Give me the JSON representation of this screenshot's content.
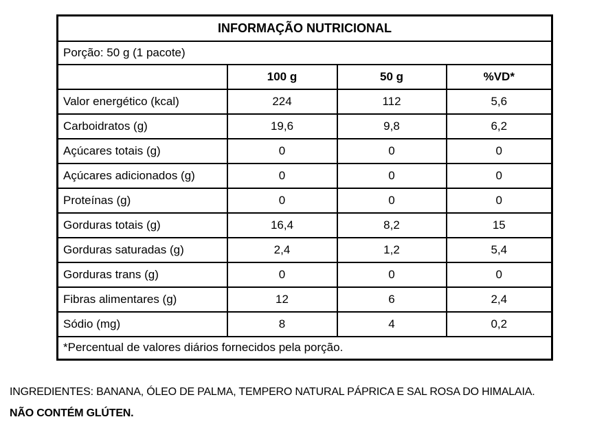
{
  "table": {
    "title": "INFORMAÇÃO NUTRICIONAL",
    "portion": "Porção: 50 g (1 pacote)",
    "columns": [
      "",
      "100 g",
      "50 g",
      "%VD*"
    ],
    "rows": [
      {
        "label": "Valor energético (kcal)",
        "values": [
          "224",
          "112",
          "5,6"
        ]
      },
      {
        "label": "Carboidratos (g)",
        "values": [
          "19,6",
          "9,8",
          "6,2"
        ]
      },
      {
        "label": "Açúcares totais (g)",
        "values": [
          "0",
          "0",
          "0"
        ]
      },
      {
        "label": "Açúcares adicionados (g)",
        "values": [
          "0",
          "0",
          "0"
        ]
      },
      {
        "label": "Proteínas (g)",
        "values": [
          "0",
          "0",
          "0"
        ]
      },
      {
        "label": "Gorduras totais (g)",
        "values": [
          "16,4",
          "8,2",
          "15"
        ]
      },
      {
        "label": "Gorduras saturadas (g)",
        "values": [
          "2,4",
          "1,2",
          "5,4"
        ]
      },
      {
        "label": "Gorduras trans (g)",
        "values": [
          "0",
          "0",
          "0"
        ]
      },
      {
        "label": "Fibras alimentares (g)",
        "values": [
          "12",
          "6",
          "2,4"
        ]
      },
      {
        "label": "Sódio (mg)",
        "values": [
          "8",
          "4",
          "0,2"
        ]
      }
    ],
    "footnote": "*Percentual de valores diários fornecidos pela porção."
  },
  "notes": {
    "ingredients": "INGREDIENTES: BANANA, ÓLEO DE PALMA, TEMPERO NATURAL PÁPRICA E SAL ROSA DO HIMALAIA.",
    "gluten": "NÃO CONTÉM GLÚTEN."
  },
  "colors": {
    "border": "#000000",
    "text": "#000000",
    "background": "#ffffff"
  }
}
